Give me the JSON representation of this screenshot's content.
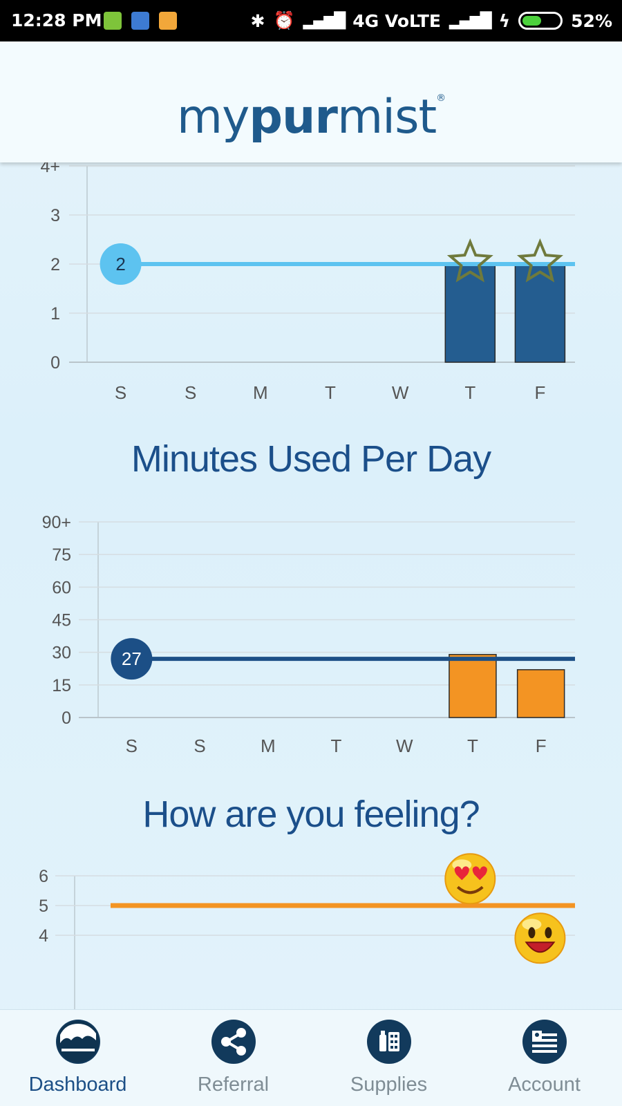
{
  "status_bar": {
    "time": "12:28 PM",
    "network": "4G VoLTE",
    "battery": "52%",
    "battery_level": 0.52,
    "icons": [
      "notification-green-icon",
      "notification-blue-icon",
      "notification-orange-icon",
      "bluetooth-icon",
      "alarm-icon",
      "signal-icon",
      "charging-icon"
    ]
  },
  "app": {
    "logo_part1": "my",
    "logo_part2": "pur",
    "logo_part3": "mist",
    "logo_mark": "®"
  },
  "sections": {
    "minutes_title": "Minutes Used Per Day",
    "feeling_title": "How are you feeling?"
  },
  "chart_data": [
    {
      "type": "bar",
      "categories": [
        "S",
        "S",
        "M",
        "T",
        "W",
        "T",
        "F"
      ],
      "values": [
        0,
        0,
        0,
        0,
        0,
        2,
        2
      ],
      "y_ticks": [
        "0",
        "1",
        "2",
        "3",
        "4+"
      ],
      "ylim": [
        0,
        4
      ],
      "target_value": 2,
      "target_label": "2",
      "bar_color": "#245d90",
      "target_color": "#5dc3f0",
      "star_on": [
        5,
        6
      ],
      "grid": true
    },
    {
      "type": "bar",
      "categories": [
        "S",
        "S",
        "M",
        "T",
        "W",
        "T",
        "F"
      ],
      "values": [
        0,
        0,
        0,
        0,
        0,
        29,
        22
      ],
      "y_ticks": [
        "0",
        "15",
        "30",
        "45",
        "60",
        "75",
        "90+"
      ],
      "ylim": [
        0,
        90
      ],
      "target_value": 27,
      "target_label": "27",
      "bar_color": "#f39423",
      "target_color": "#1c4f86",
      "grid": true
    },
    {
      "type": "line",
      "y_ticks": [
        "4",
        "5",
        "6"
      ],
      "ylim": [
        3,
        6
      ],
      "target_value": 5,
      "target_color": "#f39423",
      "points": [
        {
          "index": 5,
          "value": 5.9,
          "icon": "heart-eyes-emoji-icon"
        },
        {
          "index": 6,
          "value": 3.9,
          "icon": "laughing-emoji-icon"
        }
      ],
      "grid": true
    }
  ],
  "nav": [
    {
      "label": "Dashboard",
      "icon": "dashboard-icon",
      "active": true
    },
    {
      "label": "Referral",
      "icon": "share-icon",
      "active": false
    },
    {
      "label": "Supplies",
      "icon": "supplies-icon",
      "active": false
    },
    {
      "label": "Account",
      "icon": "account-icon",
      "active": false
    }
  ],
  "colors": {
    "accent": "#1c4f86",
    "bar_blue": "#245d90",
    "bar_orange": "#f39423",
    "target_light": "#5dc3f0"
  }
}
